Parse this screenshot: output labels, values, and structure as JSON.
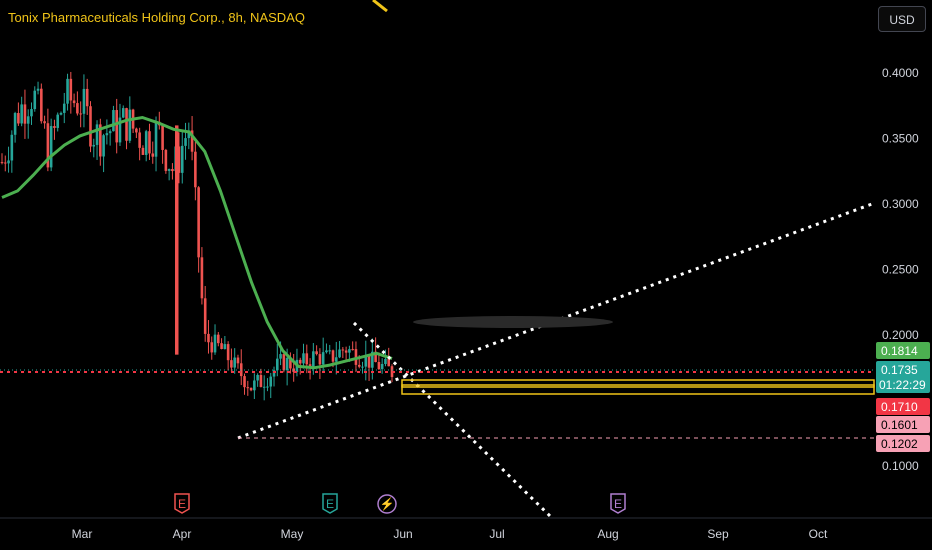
{
  "chart_title": "Tonix Pharmaceuticals Holding Corp., 8h, NASDAQ",
  "currency_button": "USD",
  "colors": {
    "up": "#26a69a",
    "down": "#ef5350",
    "ma": "#4caf50",
    "accent": "#f0c419",
    "badge_green": "#4caf50",
    "badge_red": "#f23645",
    "badge_pink": "#f7a1b5"
  },
  "chart_data": {
    "type": "candlestick",
    "title": "Tonix Pharmaceuticals Holding Corp., 8h, NASDAQ",
    "x_ticks": [
      "Mar",
      "Apr",
      "May",
      "Jun",
      "Jul",
      "Aug",
      "Sep",
      "Oct"
    ],
    "y_ticks": [
      "0.4000",
      "0.3500",
      "0.3000",
      "0.2500",
      "0.2000",
      "0.1000"
    ],
    "ylim": [
      0.09,
      0.42
    ],
    "price_badges": [
      {
        "label": "0.1814",
        "value": 0.1814,
        "color": "green"
      },
      {
        "label": "0.1735",
        "value": 0.1735,
        "color": "teal",
        "countdown": "01:22:29"
      },
      {
        "label": "0.1710",
        "value": 0.171,
        "color": "red"
      },
      {
        "label": "0.1601",
        "value": 0.1601,
        "color": "pink"
      },
      {
        "label": "0.1202",
        "value": 0.1202,
        "color": "pink"
      }
    ],
    "events": [
      {
        "icon": "E",
        "month": "Apr",
        "color": "red"
      },
      {
        "icon": "E",
        "month": "May",
        "color": "teal"
      },
      {
        "icon": "⚡",
        "month": "May",
        "color": "purple"
      },
      {
        "icon": "E",
        "month": "Aug",
        "color": "purple"
      }
    ],
    "ma_series": [
      0.305,
      0.31,
      0.322,
      0.335,
      0.345,
      0.352,
      0.356,
      0.36,
      0.364,
      0.366,
      0.362,
      0.357,
      0.355,
      0.34,
      0.31,
      0.275,
      0.24,
      0.21,
      0.188,
      0.176,
      0.175,
      0.177,
      0.18,
      0.183,
      0.186,
      0.182
    ],
    "close_series": [
      0.332,
      0.37,
      0.385,
      0.34,
      0.38,
      0.378,
      0.352,
      0.357,
      0.363,
      0.35,
      0.355,
      0.325,
      0.36,
      0.197,
      0.19,
      0.175,
      0.16,
      0.168,
      0.18,
      0.176,
      0.184,
      0.182,
      0.19,
      0.183,
      0.178,
      0.172
    ],
    "trendlines": [
      {
        "name": "rising support",
        "from_value": 0.1202,
        "to_value": 0.3
      }
    ]
  }
}
